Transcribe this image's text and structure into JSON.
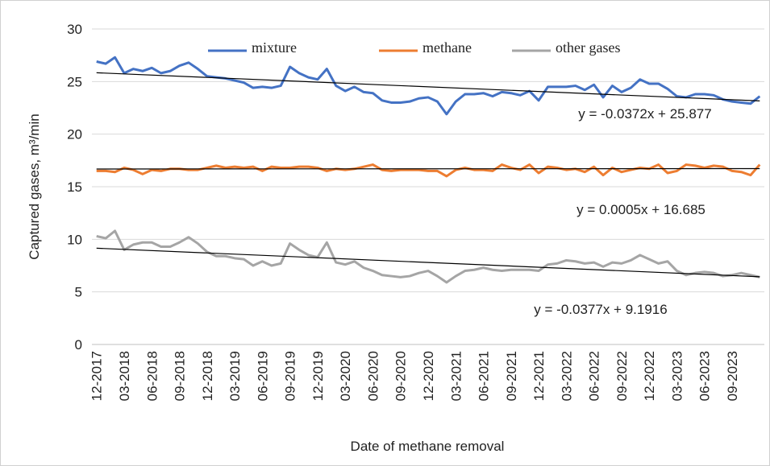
{
  "chart_data": {
    "type": "line",
    "x_label": "Date of methane removal",
    "y_label": "Captured gases, m³/min",
    "categories": [
      "12-2017",
      null,
      null,
      "03-2018",
      null,
      null,
      "06-2018",
      null,
      null,
      "09-2018",
      null,
      null,
      "12-2018",
      null,
      null,
      "03-2019",
      null,
      null,
      "06-2019",
      null,
      null,
      "09-2019",
      null,
      null,
      "12-2019",
      null,
      null,
      "03-2020",
      null,
      null,
      "06-2020",
      null,
      null,
      "09-2020",
      null,
      null,
      "12-2020",
      null,
      null,
      "03-2021",
      null,
      null,
      "06-2021",
      null,
      null,
      "09-2021",
      null,
      null,
      "12-2021",
      null,
      null,
      "03-2022",
      null,
      null,
      "06-2022",
      null,
      null,
      "09-2022",
      null,
      null,
      "12-2022",
      null,
      null,
      "03-2023",
      null,
      null,
      "06-2023",
      null,
      null,
      "09-2023",
      null,
      null,
      null
    ],
    "series": [
      {
        "name": "mixture",
        "color": "#4472c4",
        "values": [
          26.9,
          26.7,
          27.3,
          25.8,
          26.2,
          26.0,
          26.3,
          25.8,
          26.0,
          26.5,
          26.8,
          26.2,
          25.5,
          25.4,
          25.3,
          25.1,
          24.9,
          24.4,
          24.5,
          24.4,
          24.6,
          26.4,
          25.8,
          25.4,
          25.2,
          26.2,
          24.6,
          24.1,
          24.5,
          24.0,
          23.9,
          23.2,
          23.0,
          23.0,
          23.1,
          23.4,
          23.5,
          23.1,
          21.9,
          23.1,
          23.8,
          23.8,
          23.9,
          23.6,
          24.0,
          23.9,
          23.7,
          24.1,
          23.2,
          24.5,
          24.5,
          24.5,
          24.6,
          24.2,
          24.7,
          23.5,
          24.6,
          24.0,
          24.4,
          25.2,
          24.8,
          24.8,
          24.3,
          23.6,
          23.5,
          23.8,
          23.8,
          23.7,
          23.3,
          23.1,
          23.0,
          22.9,
          23.6
        ]
      },
      {
        "name": "methane",
        "color": "#ed7d31",
        "values": [
          16.5,
          16.5,
          16.4,
          16.8,
          16.6,
          16.2,
          16.6,
          16.5,
          16.7,
          16.7,
          16.6,
          16.6,
          16.8,
          17.0,
          16.8,
          16.9,
          16.8,
          16.9,
          16.5,
          16.9,
          16.8,
          16.8,
          16.9,
          16.9,
          16.8,
          16.5,
          16.7,
          16.6,
          16.7,
          16.9,
          17.1,
          16.6,
          16.5,
          16.6,
          16.6,
          16.6,
          16.5,
          16.5,
          16.0,
          16.6,
          16.8,
          16.6,
          16.6,
          16.5,
          17.1,
          16.8,
          16.6,
          17.1,
          16.3,
          16.9,
          16.8,
          16.6,
          16.7,
          16.4,
          16.9,
          16.1,
          16.8,
          16.4,
          16.6,
          16.8,
          16.7,
          17.1,
          16.3,
          16.5,
          17.1,
          17.0,
          16.8,
          17.0,
          16.9,
          16.5,
          16.4,
          16.1,
          17.1
        ]
      },
      {
        "name": "other gases",
        "color": "#a5a5a5",
        "values": [
          10.3,
          10.1,
          10.8,
          9.0,
          9.5,
          9.7,
          9.7,
          9.3,
          9.3,
          9.7,
          10.2,
          9.6,
          8.8,
          8.4,
          8.4,
          8.2,
          8.1,
          7.5,
          7.9,
          7.5,
          7.7,
          9.6,
          9.0,
          8.5,
          8.3,
          9.7,
          7.8,
          7.6,
          7.9,
          7.3,
          7.0,
          6.6,
          6.5,
          6.4,
          6.5,
          6.8,
          7.0,
          6.5,
          5.9,
          6.5,
          7.0,
          7.1,
          7.3,
          7.1,
          7.0,
          7.1,
          7.1,
          7.1,
          7.0,
          7.6,
          7.7,
          8.0,
          7.9,
          7.7,
          7.8,
          7.4,
          7.8,
          7.7,
          8.0,
          8.5,
          8.1,
          7.7,
          7.9,
          7.0,
          6.6,
          6.8,
          6.9,
          6.8,
          6.5,
          6.6,
          6.8,
          6.6,
          6.4
        ]
      }
    ],
    "trendlines": [
      {
        "label": "y = -0.0372x + 25.877",
        "slope": -0.0372,
        "intercept": 25.877,
        "color": "#000000"
      },
      {
        "label": "y = 0.0005x + 16.685",
        "slope": 0.0005,
        "intercept": 16.685,
        "color": "#000000"
      },
      {
        "label": "y = -0.0377x + 9.1916",
        "slope": -0.0377,
        "intercept": 9.1916,
        "color": "#000000"
      }
    ],
    "ylim": [
      0,
      30
    ],
    "yticks": [
      0,
      5,
      10,
      15,
      20,
      25,
      30
    ],
    "grid": true
  }
}
